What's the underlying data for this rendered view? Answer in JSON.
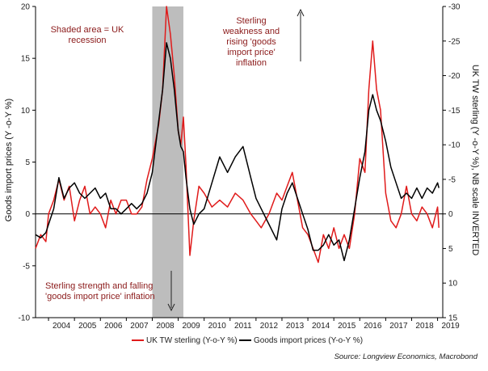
{
  "chart_data": {
    "type": "line",
    "title": "",
    "ylabel_left": "Goods import prices (Y -o-Y %)",
    "ylabel_right": "UK TW sterling (Y -o-Y %), NB scale INVERTED",
    "ylim_left": [
      -10,
      20
    ],
    "ylim_right": [
      15,
      -30
    ],
    "yticks_left": [
      20,
      15,
      10,
      5,
      0,
      -5,
      -10
    ],
    "yticks_right": [
      -30,
      -25,
      -20,
      -15,
      -10,
      -5,
      0,
      5,
      10,
      15
    ],
    "xlim": [
      2003.5,
      2019.2
    ],
    "xticks": [
      2004,
      2005,
      2006,
      2007,
      2008,
      2009,
      2010,
      2011,
      2012,
      2013,
      2014,
      2015,
      2016,
      2017,
      2018,
      2019
    ],
    "recession": [
      2008.0,
      2009.2
    ],
    "annotations": {
      "recession": [
        "Shaded area = UK",
        "recession"
      ],
      "weakness": [
        "Sterling",
        "weakness and",
        "rising 'goods",
        "import price'",
        "inflation"
      ],
      "strength": [
        "Sterling strength and falling",
        "'goods import price' inflation"
      ]
    },
    "legend": {
      "sterling": "UK TW sterling (Y-o-Y %)",
      "imports": "Goods import prices (Y-o-Y %)"
    },
    "source": "Source: Longview Economics, Macrobond",
    "colors": {
      "sterling": "#e01b1b",
      "imports": "#000000",
      "recession": "#bdbdbd"
    },
    "series": [
      {
        "name": "UK TW sterling (Y-o-Y %)",
        "axis": "right",
        "x": [
          2003.5,
          2003.7,
          2003.9,
          2004.0,
          2004.2,
          2004.4,
          2004.6,
          2004.8,
          2005.0,
          2005.2,
          2005.4,
          2005.6,
          2005.8,
          2006.0,
          2006.2,
          2006.4,
          2006.6,
          2006.8,
          2007.0,
          2007.2,
          2007.4,
          2007.6,
          2007.8,
          2008.0,
          2008.1,
          2008.25,
          2008.4,
          2008.55,
          2008.7,
          2008.85,
          2009.0,
          2009.1,
          2009.2,
          2009.3,
          2009.45,
          2009.6,
          2009.8,
          2010.0,
          2010.3,
          2010.6,
          2010.9,
          2011.2,
          2011.5,
          2011.8,
          2012.0,
          2012.2,
          2012.5,
          2012.8,
          2013.0,
          2013.2,
          2013.4,
          2013.6,
          2013.8,
          2014.0,
          2014.2,
          2014.4,
          2014.6,
          2014.8,
          2015.0,
          2015.2,
          2015.4,
          2015.6,
          2015.8,
          2016.0,
          2016.2,
          2016.35,
          2016.5,
          2016.65,
          2016.8,
          2017.0,
          2017.2,
          2017.4,
          2017.6,
          2017.8,
          2018.0,
          2018.2,
          2018.4,
          2018.6,
          2018.8,
          2019.0,
          2019.05
        ],
        "values": [
          5,
          3,
          4,
          0,
          -2,
          -5,
          -2,
          -4,
          1,
          -2,
          -4,
          0,
          -1,
          0,
          2,
          -2,
          0,
          -2,
          -2,
          0,
          0,
          -1,
          -5,
          -8,
          -10,
          -13,
          -18,
          -30,
          -26,
          -20,
          -12,
          -10,
          -14,
          -7,
          6,
          1,
          -4,
          -3,
          -1,
          -2,
          -1,
          -3,
          -2,
          0,
          1,
          2,
          0,
          -3,
          -2,
          -4,
          -6,
          -2,
          2,
          3,
          5,
          7,
          3,
          5,
          2,
          5,
          3,
          5,
          0,
          -8,
          -6,
          -18,
          -25,
          -18,
          -15,
          -3,
          1,
          2,
          0,
          -4,
          0,
          1,
          -1,
          0,
          2,
          -1,
          2
        ]
      },
      {
        "name": "Goods import prices (Y-o-Y %)",
        "axis": "left",
        "x": [
          2003.5,
          2003.7,
          2003.9,
          2004.0,
          2004.2,
          2004.4,
          2004.6,
          2004.8,
          2005.0,
          2005.2,
          2005.4,
          2005.6,
          2005.8,
          2006.0,
          2006.2,
          2006.4,
          2006.6,
          2006.8,
          2007.0,
          2007.2,
          2007.4,
          2007.6,
          2007.8,
          2008.0,
          2008.1,
          2008.25,
          2008.4,
          2008.55,
          2008.7,
          2008.85,
          2009.0,
          2009.1,
          2009.2,
          2009.3,
          2009.45,
          2009.6,
          2009.8,
          2010.0,
          2010.3,
          2010.6,
          2010.9,
          2011.2,
          2011.5,
          2011.8,
          2012.0,
          2012.2,
          2012.5,
          2012.8,
          2013.0,
          2013.2,
          2013.4,
          2013.6,
          2013.8,
          2014.0,
          2014.2,
          2014.4,
          2014.6,
          2014.8,
          2015.0,
          2015.2,
          2015.4,
          2015.6,
          2015.8,
          2016.0,
          2016.2,
          2016.35,
          2016.5,
          2016.65,
          2016.8,
          2017.0,
          2017.2,
          2017.4,
          2017.6,
          2017.8,
          2018.0,
          2018.2,
          2018.4,
          2018.6,
          2018.8,
          2019.0,
          2019.05
        ],
        "values": [
          -2.0,
          -2.3,
          -1.8,
          -1.0,
          0.5,
          3.5,
          1.5,
          2.5,
          3.0,
          2.0,
          1.5,
          2.0,
          2.5,
          1.5,
          2.0,
          0.5,
          0.5,
          0.0,
          0.5,
          1.0,
          0.5,
          1.0,
          2.0,
          4.0,
          6.0,
          9.0,
          12.0,
          16.5,
          15.0,
          12.0,
          8.0,
          6.5,
          6.0,
          3.5,
          0.5,
          -1.0,
          0.0,
          0.5,
          3.0,
          5.5,
          4.0,
          5.5,
          6.5,
          3.5,
          1.5,
          0.5,
          -1.0,
          -2.5,
          0.5,
          2.0,
          3.0,
          1.5,
          0.0,
          -1.5,
          -3.5,
          -3.5,
          -3.0,
          -2.0,
          -3.0,
          -2.5,
          -4.5,
          -2.5,
          0.5,
          3.5,
          6.0,
          10.0,
          11.5,
          10.0,
          9.0,
          7.0,
          4.5,
          3.0,
          1.5,
          2.0,
          1.5,
          2.5,
          1.5,
          2.5,
          2.0,
          3.0,
          2.5
        ]
      }
    ]
  }
}
